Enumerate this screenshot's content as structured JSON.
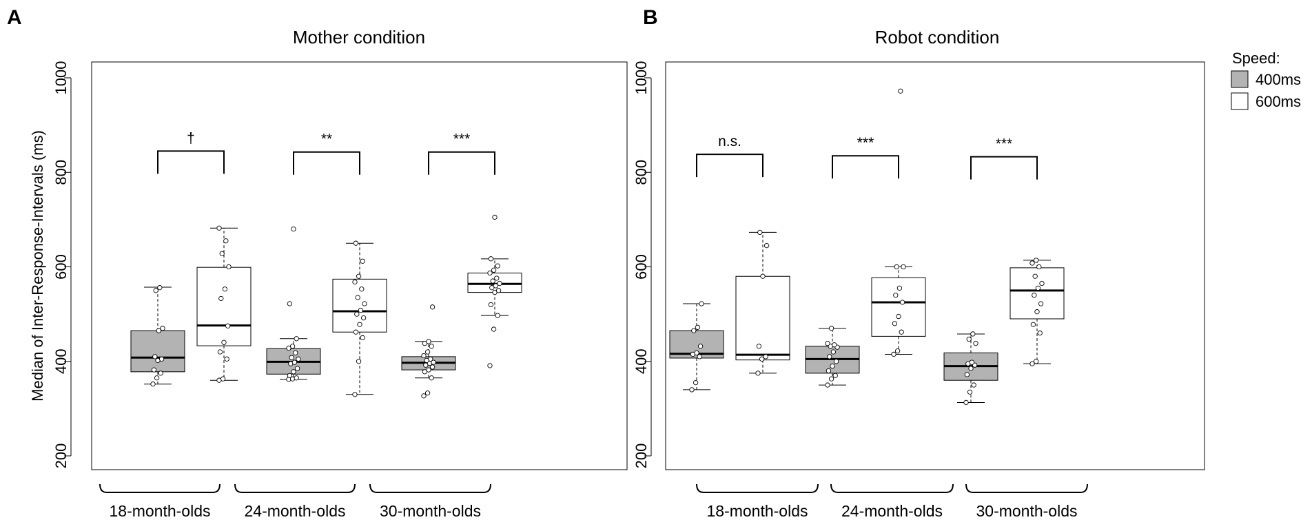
{
  "chart_data": [
    {
      "panel": "A",
      "type": "box",
      "title": "Mother condition",
      "ylabel": "Median of Inter-Response-Intervals (ms)",
      "ylim": [
        170,
        1030
      ],
      "yticks": [
        200,
        400,
        600,
        800,
        1000
      ],
      "groups": [
        {
          "label": "18-month-olds",
          "sig": "†",
          "sig_bracket_y": 845,
          "boxes": [
            {
              "speed": "400ms",
              "whisker_low": 352,
              "q1": 378,
              "median": 408,
              "q3": 465,
              "whisker_high": 557,
              "outliers": [],
              "points": [
                352,
                365,
                375,
                382,
                402,
                405,
                410,
                465,
                470,
                550,
                556
              ]
            },
            {
              "speed": "600ms",
              "whisker_low": 360,
              "q1": 433,
              "median": 476,
              "q3": 599,
              "whisker_high": 682,
              "outliers": [],
              "points": [
                360,
                363,
                405,
                420,
                440,
                475,
                533,
                553,
                600,
                628,
                655,
                682
              ]
            }
          ]
        },
        {
          "label": "24-month-olds",
          "sig": "**",
          "sig_bracket_y": 843,
          "boxes": [
            {
              "speed": "400ms",
              "whisker_low": 362,
              "q1": 373,
              "median": 399,
              "q3": 427,
              "whisker_high": 448,
              "outliers": [
                522,
                680
              ],
              "points": [
                362,
                363,
                365,
                370,
                378,
                385,
                395,
                398,
                405,
                408,
                418,
                428,
                432,
                448,
                522,
                680
              ]
            },
            {
              "speed": "600ms",
              "whisker_low": 330,
              "q1": 462,
              "median": 506,
              "q3": 574,
              "whisker_high": 650,
              "outliers": [],
              "points": [
                330,
                400,
                450,
                462,
                478,
                492,
                500,
                508,
                522,
                535,
                553,
                568,
                580,
                612,
                650
              ]
            }
          ]
        },
        {
          "label": "30-month-olds",
          "sig": "***",
          "sig_bracket_y": 843,
          "boxes": [
            {
              "speed": "400ms",
              "whisker_low": 365,
              "q1": 382,
              "median": 397,
              "q3": 410,
              "whisker_high": 442,
              "outliers": [
                327,
                333,
                515
              ],
              "points": [
                327,
                333,
                365,
                378,
                382,
                388,
                392,
                396,
                398,
                402,
                405,
                412,
                420,
                432,
                438,
                442,
                515
              ]
            },
            {
              "speed": "600ms",
              "whisker_low": 497,
              "q1": 546,
              "median": 564,
              "q3": 587,
              "whisker_high": 617,
              "outliers": [
                391,
                705
              ],
              "points": [
                391,
                468,
                497,
                520,
                546,
                550,
                556,
                560,
                565,
                570,
                576,
                587,
                593,
                602,
                617,
                705
              ]
            }
          ]
        }
      ]
    },
    {
      "panel": "B",
      "type": "box",
      "title": "Robot condition",
      "ylabel": "",
      "ylim": [
        170,
        1030
      ],
      "yticks": [
        200,
        400,
        600,
        800,
        1000
      ],
      "groups": [
        {
          "label": "18-month-olds",
          "sig": "n.s.",
          "sig_bracket_y": 838,
          "boxes": [
            {
              "speed": "400ms",
              "whisker_low": 340,
              "q1": 407,
              "median": 416,
              "q3": 465,
              "whisker_high": 522,
              "outliers": [],
              "points": [
                340,
                355,
                410,
                415,
                418,
                432,
                465,
                472,
                522
              ]
            },
            {
              "speed": "600ms",
              "whisker_low": 375,
              "q1": 403,
              "median": 414,
              "q3": 580,
              "whisker_high": 673,
              "outliers": [],
              "points": [
                375,
                405,
                410,
                432,
                580,
                645,
                673
              ]
            }
          ]
        },
        {
          "label": "24-month-olds",
          "sig": "***",
          "sig_bracket_y": 835,
          "boxes": [
            {
              "speed": "400ms",
              "whisker_low": 350,
              "q1": 375,
              "median": 405,
              "q3": 432,
              "whisker_high": 470,
              "outliers": [],
              "points": [
                350,
                363,
                370,
                380,
                390,
                400,
                410,
                420,
                430,
                432,
                435,
                438,
                470
              ]
            },
            {
              "speed": "600ms",
              "whisker_low": 415,
              "q1": 453,
              "median": 525,
              "q3": 577,
              "whisker_high": 600,
              "outliers": [
                972
              ],
              "points": [
                415,
                422,
                462,
                480,
                495,
                525,
                540,
                555,
                600,
                600,
                972
              ]
            }
          ]
        },
        {
          "label": "30-month-olds",
          "sig": "***",
          "sig_bracket_y": 833,
          "boxes": [
            {
              "speed": "400ms",
              "whisker_low": 313,
              "q1": 360,
              "median": 390,
              "q3": 418,
              "whisker_high": 458,
              "outliers": [],
              "points": [
                313,
                335,
                350,
                372,
                385,
                392,
                395,
                398,
                438,
                447,
                458
              ]
            },
            {
              "speed": "600ms",
              "whisker_low": 395,
              "q1": 490,
              "median": 550,
              "q3": 598,
              "whisker_high": 614,
              "outliers": [],
              "points": [
                395,
                400,
                460,
                478,
                505,
                522,
                540,
                555,
                565,
                580,
                600,
                608,
                614
              ]
            }
          ]
        }
      ]
    }
  ],
  "legend": {
    "title": "Speed:",
    "items": [
      {
        "label": "400ms",
        "color": "#b3b3b3"
      },
      {
        "label": "600ms",
        "color": "#ffffff"
      }
    ]
  }
}
